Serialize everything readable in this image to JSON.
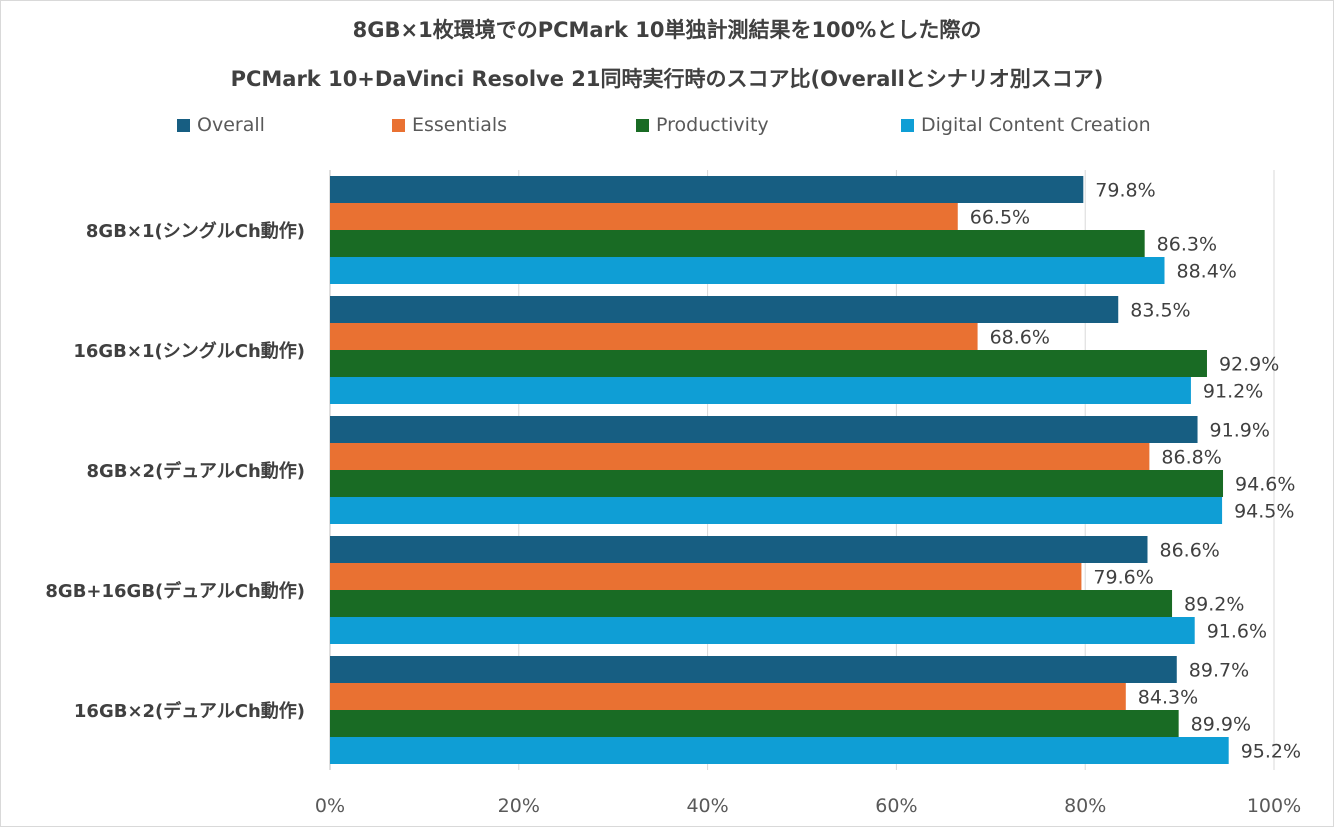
{
  "chart_data": {
    "type": "bar",
    "orientation": "horizontal",
    "title": "8GB×1枚環境でのPCMark 10単独計測結果を100%とした際の",
    "subtitle": "PCMark 10+DaVinci Resolve 21同時実行時のスコア比(Overallとシナリオ別スコア)",
    "categories": [
      "8GB×1(シングルCh動作)",
      "16GB×1(シングルCh動作)",
      "8GB×2(デュアルCh動作)",
      "8GB+16GB(デュアルCh動作)",
      "16GB×2(デュアルCh動作)"
    ],
    "series": [
      {
        "name": "Overall",
        "color": "#175E82",
        "values": [
          79.8,
          83.5,
          91.9,
          86.6,
          89.7
        ],
        "labels": [
          "79.8%",
          "83.5%",
          "91.9%",
          "86.6%",
          "89.7%"
        ]
      },
      {
        "name": "Essentials",
        "color": "#E97132",
        "values": [
          66.5,
          68.6,
          86.8,
          79.6,
          84.3
        ],
        "labels": [
          "66.5%",
          "68.6%",
          "86.8%",
          "79.6%",
          "84.3%"
        ]
      },
      {
        "name": "Productivity",
        "color": "#196B24",
        "values": [
          86.3,
          92.9,
          94.6,
          89.2,
          89.9
        ],
        "labels": [
          "86.3%",
          "92.9%",
          "94.6%",
          "89.2%",
          "89.9%"
        ]
      },
      {
        "name": "Digital Content Creation",
        "color": "#0F9ED5",
        "values": [
          88.4,
          91.2,
          94.5,
          91.6,
          95.2
        ],
        "labels": [
          "88.4%",
          "91.2%",
          "94.5%",
          "91.6%",
          "95.2%"
        ]
      }
    ],
    "xlim": [
      0,
      100
    ],
    "xticks": [
      "0%",
      "20%",
      "40%",
      "60%",
      "80%",
      "100%"
    ],
    "grid": true,
    "legend_position": "top"
  }
}
